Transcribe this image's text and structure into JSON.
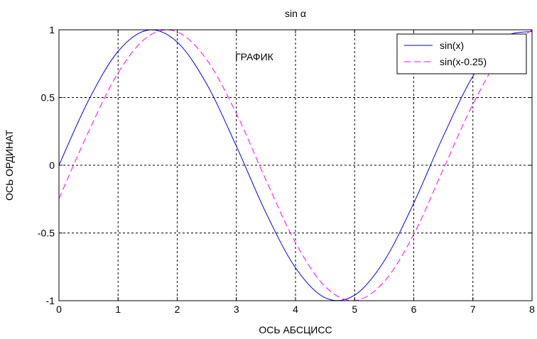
{
  "chart_data": {
    "type": "line",
    "title": "sin α",
    "xlabel": "ОСЬ АБСЦИСС",
    "ylabel": "ОСЬ ОРДИНАТ",
    "annotation": "ГРАФИК",
    "xlim": [
      0,
      8
    ],
    "ylim": [
      -1,
      1
    ],
    "xticks": [
      "0",
      "1",
      "2",
      "3",
      "4",
      "5",
      "6",
      "7",
      "8"
    ],
    "yticks": [
      "1",
      "0.5",
      "0",
      "-0.5",
      "-1"
    ],
    "grid": true,
    "legend_position": "top-right",
    "series": [
      {
        "name": "sin(x)",
        "color": "#0000ff",
        "style": "solid",
        "x": [
          0,
          0.5,
          1,
          1.5,
          2,
          2.5,
          3,
          3.5,
          4,
          4.5,
          5,
          5.5,
          6,
          6.5,
          7,
          7.5,
          8
        ],
        "y": [
          0,
          0.479,
          0.841,
          0.997,
          0.909,
          0.598,
          0.141,
          -0.351,
          -0.757,
          -0.978,
          -0.959,
          -0.706,
          -0.279,
          0.215,
          0.657,
          0.938,
          0.989
        ]
      },
      {
        "name": "sin(x-0.25)",
        "color": "#ff00ff",
        "style": "dashed",
        "x": [
          0,
          0.5,
          1,
          1.5,
          2,
          2.5,
          3,
          3.5,
          4,
          4.5,
          5,
          5.5,
          6,
          6.5,
          7,
          7.5,
          8
        ],
        "y": [
          -0.247,
          0.247,
          0.682,
          0.949,
          0.984,
          0.778,
          0.382,
          -0.108,
          -0.572,
          -0.895,
          -0.999,
          -0.859,
          -0.51,
          -0.029,
          0.45,
          0.824,
          0.999
        ]
      }
    ]
  }
}
